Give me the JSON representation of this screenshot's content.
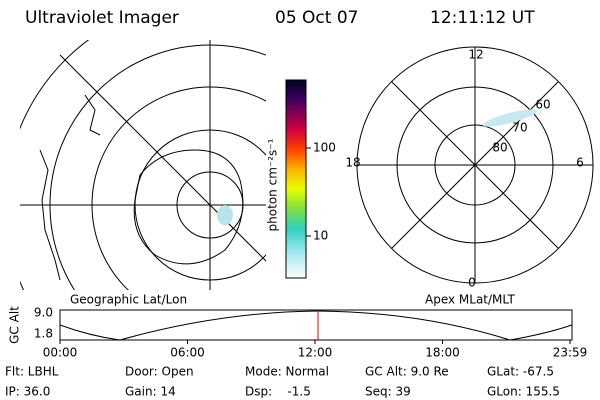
{
  "header": {
    "title": "Ultraviolet Imager",
    "date": "05 Oct 07",
    "time": "12:11:12 UT"
  },
  "colorbar": {
    "label": "photon cm⁻²s⁻¹",
    "ticks": [
      "100",
      "10"
    ]
  },
  "geo_panel": {
    "label": "Geographic Lat/Lon"
  },
  "polar_panel": {
    "label": "Apex MLat/MLT",
    "mlt_labels": [
      "12",
      "18",
      "6",
      "0"
    ],
    "lat_labels": [
      "60",
      "70",
      "80"
    ]
  },
  "altitude_plot": {
    "ylabel": "GC Alt",
    "yticks": [
      "9.0",
      "1.8"
    ],
    "xticks": [
      "00:00",
      "06:00",
      "12:00",
      "18:00",
      "23:59"
    ]
  },
  "footer": {
    "rows": [
      [
        "Flt: LBHL",
        "Door: Open",
        "Mode: Normal",
        "GC Alt: 9.0 Re",
        "GLat: -67.5"
      ],
      [
        "IP: 36.0",
        "Gain: 14",
        "Dsp:    -1.5",
        "Seq: 39",
        "GLon: 155.5"
      ]
    ]
  }
}
